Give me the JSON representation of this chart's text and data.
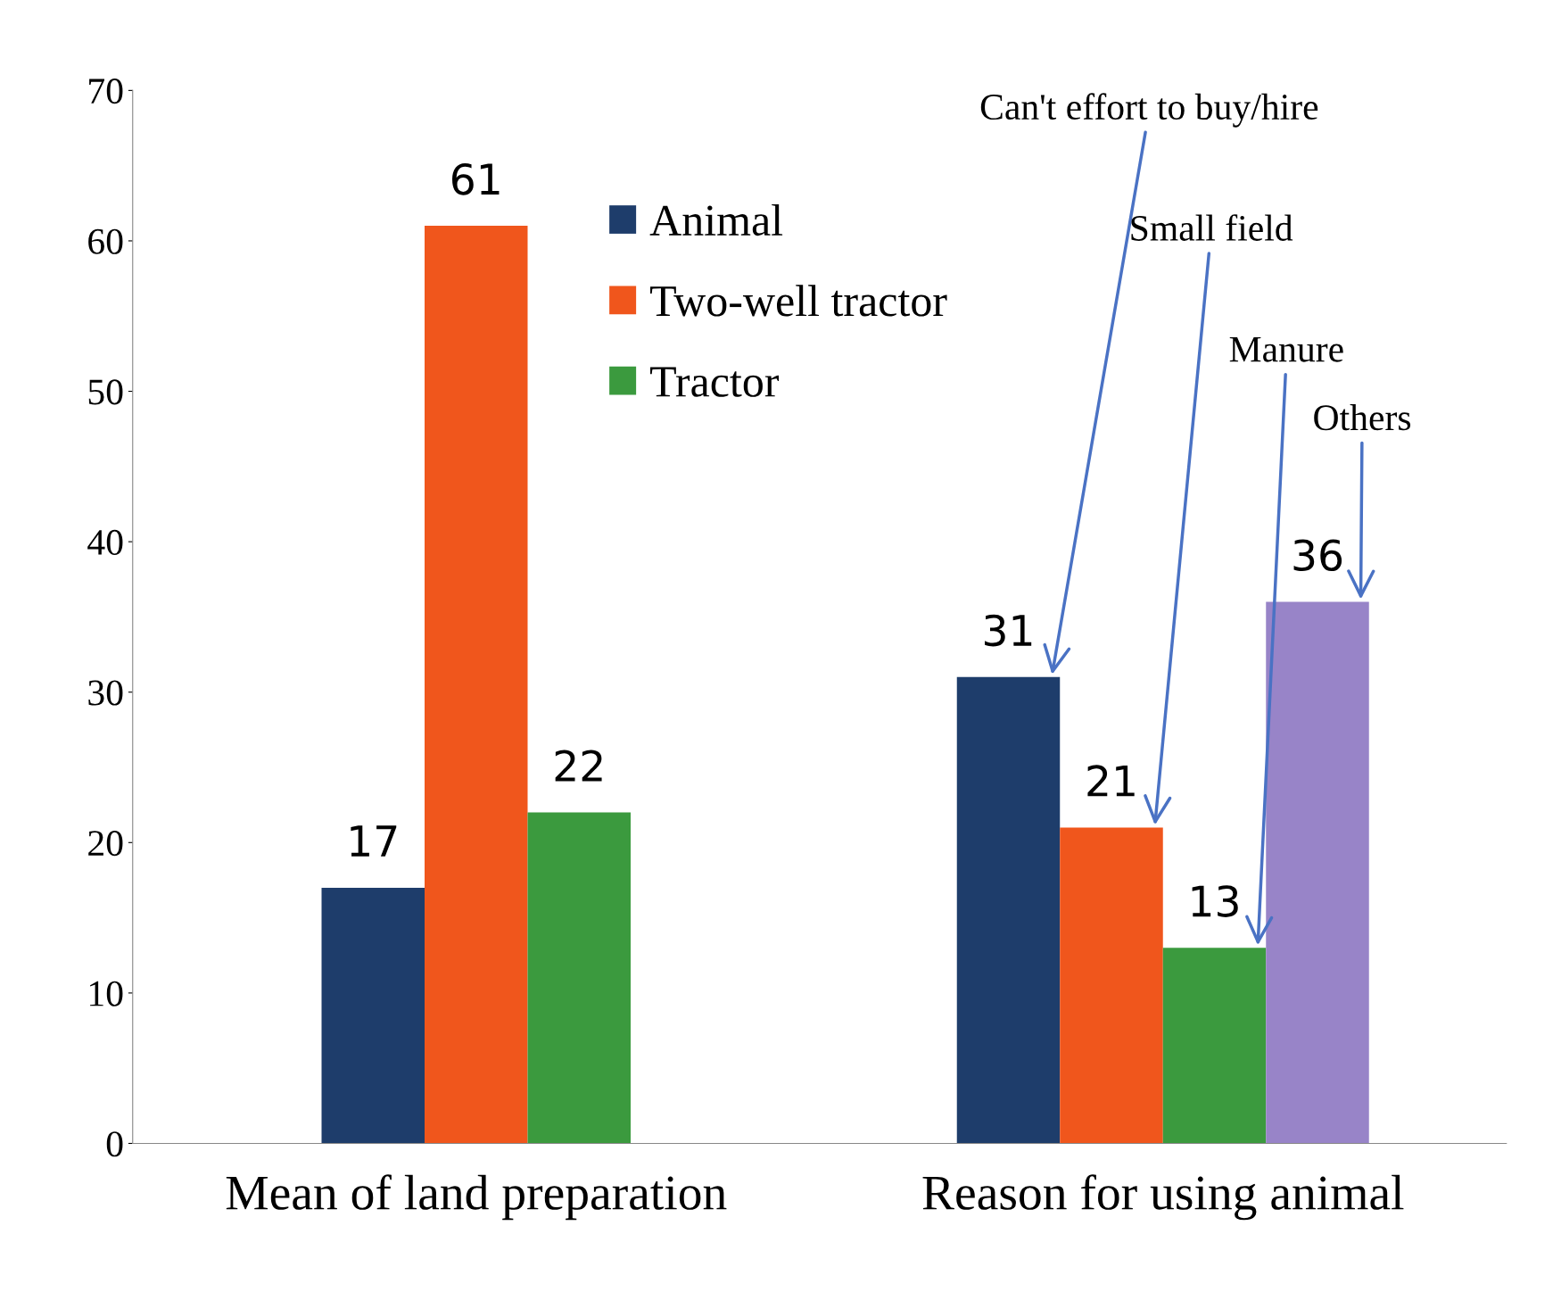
{
  "chart_data": {
    "type": "bar",
    "categories": [
      "Mean of land preparation",
      "Reason for using animal"
    ],
    "series": [
      {
        "name": "Animal",
        "color": "#1e3d6b",
        "values": [
          17,
          31
        ]
      },
      {
        "name": "Two-well tractor",
        "color": "#f0561c",
        "values": [
          61,
          21
        ]
      },
      {
        "name": "Tractor",
        "color": "#3b9a3e",
        "values": [
          22,
          13
        ]
      },
      {
        "color": "#9884c8",
        "values": [
          null,
          36
        ]
      }
    ],
    "ylim": [
      0,
      70
    ],
    "yticks": [
      0,
      10,
      20,
      30,
      40,
      50,
      60,
      70
    ],
    "data_labels": true,
    "grid": false,
    "legend": "top",
    "annotations": [
      "Can't effort to buy/hire",
      "Small field",
      "Manure",
      "Others"
    ]
  }
}
